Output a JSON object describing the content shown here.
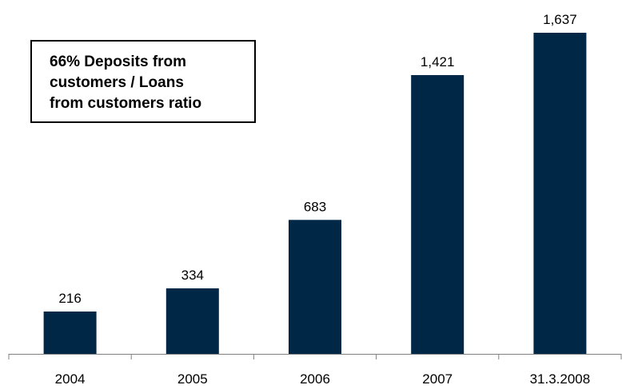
{
  "annotation": {
    "lines": [
      "66% Deposits from",
      "customers / Loans",
      "from customers ratio"
    ]
  },
  "chart_data": {
    "type": "bar",
    "title": "",
    "xlabel": "",
    "ylabel": "",
    "categories": [
      "2004",
      "2005",
      "2006",
      "2007",
      "31.3.2008"
    ],
    "values": [
      216,
      334,
      683,
      1421,
      1637
    ],
    "value_labels": [
      "216",
      "334",
      "683",
      "1,421",
      "1,637"
    ],
    "ylim": [
      0,
      1750
    ],
    "grid": false,
    "legend": "none",
    "colors": {
      "bar": "#002846",
      "axis": "#808080"
    }
  }
}
